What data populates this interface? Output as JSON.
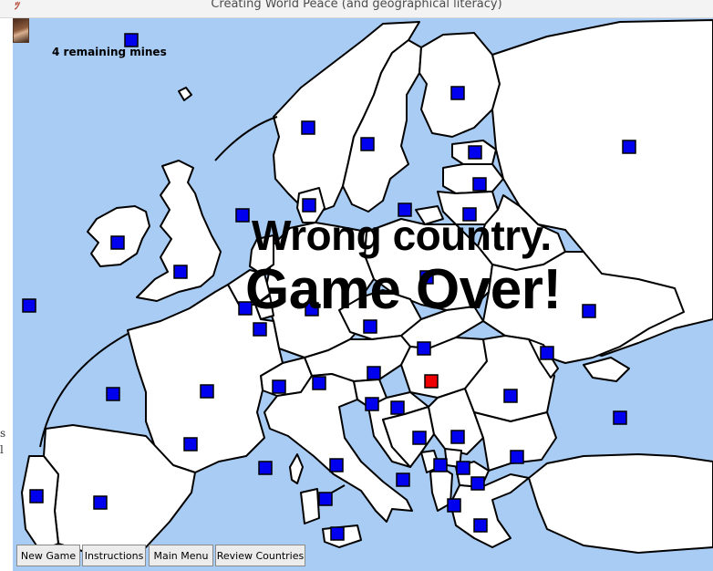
{
  "window": {
    "title": "Creating World Peace (and geographical literacy)"
  },
  "game": {
    "mines_label": "4 remaining mines",
    "message_line1": "Wrong country.",
    "message_line2": "Game Over!"
  },
  "toolbar": {
    "new_game": "New Game",
    "instructions": "Instructions",
    "main_menu": "Main Menu",
    "review_countries": "Review Countries"
  },
  "colors": {
    "sea": "#a9ccf4",
    "land": "#ffffff",
    "border": "#000000",
    "marker": "#0000ee",
    "hit_marker": "#ee0000"
  },
  "icons": {
    "app": "hands-peace-icon"
  },
  "markers": [
    {
      "id": "m1",
      "state": "normal"
    },
    {
      "id": "m2",
      "state": "normal"
    },
    {
      "id": "m3",
      "state": "normal"
    },
    {
      "id": "m4",
      "state": "normal"
    },
    {
      "id": "m5",
      "state": "normal"
    },
    {
      "id": "m6",
      "state": "normal"
    },
    {
      "id": "m7",
      "state": "normal"
    },
    {
      "id": "m8",
      "state": "normal"
    },
    {
      "id": "m9",
      "state": "normal"
    },
    {
      "id": "m10",
      "state": "normal"
    },
    {
      "id": "m11",
      "state": "normal"
    },
    {
      "id": "m12",
      "state": "normal"
    },
    {
      "id": "m13",
      "state": "normal"
    },
    {
      "id": "m14",
      "state": "normal"
    },
    {
      "id": "m15",
      "state": "normal"
    },
    {
      "id": "m16",
      "state": "normal"
    },
    {
      "id": "m17",
      "state": "normal"
    },
    {
      "id": "m18",
      "state": "normal"
    },
    {
      "id": "m19",
      "state": "normal"
    },
    {
      "id": "m20",
      "state": "normal"
    },
    {
      "id": "m21",
      "state": "normal"
    },
    {
      "id": "m22",
      "state": "normal"
    },
    {
      "id": "m23",
      "state": "normal"
    },
    {
      "id": "m24",
      "state": "normal"
    },
    {
      "id": "m25",
      "state": "normal"
    },
    {
      "id": "m26",
      "state": "normal"
    },
    {
      "id": "m27",
      "state": "normal"
    },
    {
      "id": "m28",
      "state": "normal"
    },
    {
      "id": "m29",
      "state": "normal"
    },
    {
      "id": "m30",
      "state": "normal"
    },
    {
      "id": "m31",
      "state": "normal"
    },
    {
      "id": "m32",
      "state": "hit"
    },
    {
      "id": "m33",
      "state": "normal"
    },
    {
      "id": "m34",
      "state": "normal"
    },
    {
      "id": "m35",
      "state": "normal"
    },
    {
      "id": "m36",
      "state": "normal"
    },
    {
      "id": "m37",
      "state": "normal"
    },
    {
      "id": "m38",
      "state": "normal"
    },
    {
      "id": "m39",
      "state": "normal"
    },
    {
      "id": "m40",
      "state": "normal"
    },
    {
      "id": "m41",
      "state": "normal"
    },
    {
      "id": "m42",
      "state": "normal"
    },
    {
      "id": "m43",
      "state": "normal"
    },
    {
      "id": "m44",
      "state": "normal"
    },
    {
      "id": "m45",
      "state": "normal"
    },
    {
      "id": "m46",
      "state": "normal"
    },
    {
      "id": "m47",
      "state": "normal"
    },
    {
      "id": "m48",
      "state": "normal"
    },
    {
      "id": "m49",
      "state": "normal"
    },
    {
      "id": "m50",
      "state": "normal"
    }
  ]
}
